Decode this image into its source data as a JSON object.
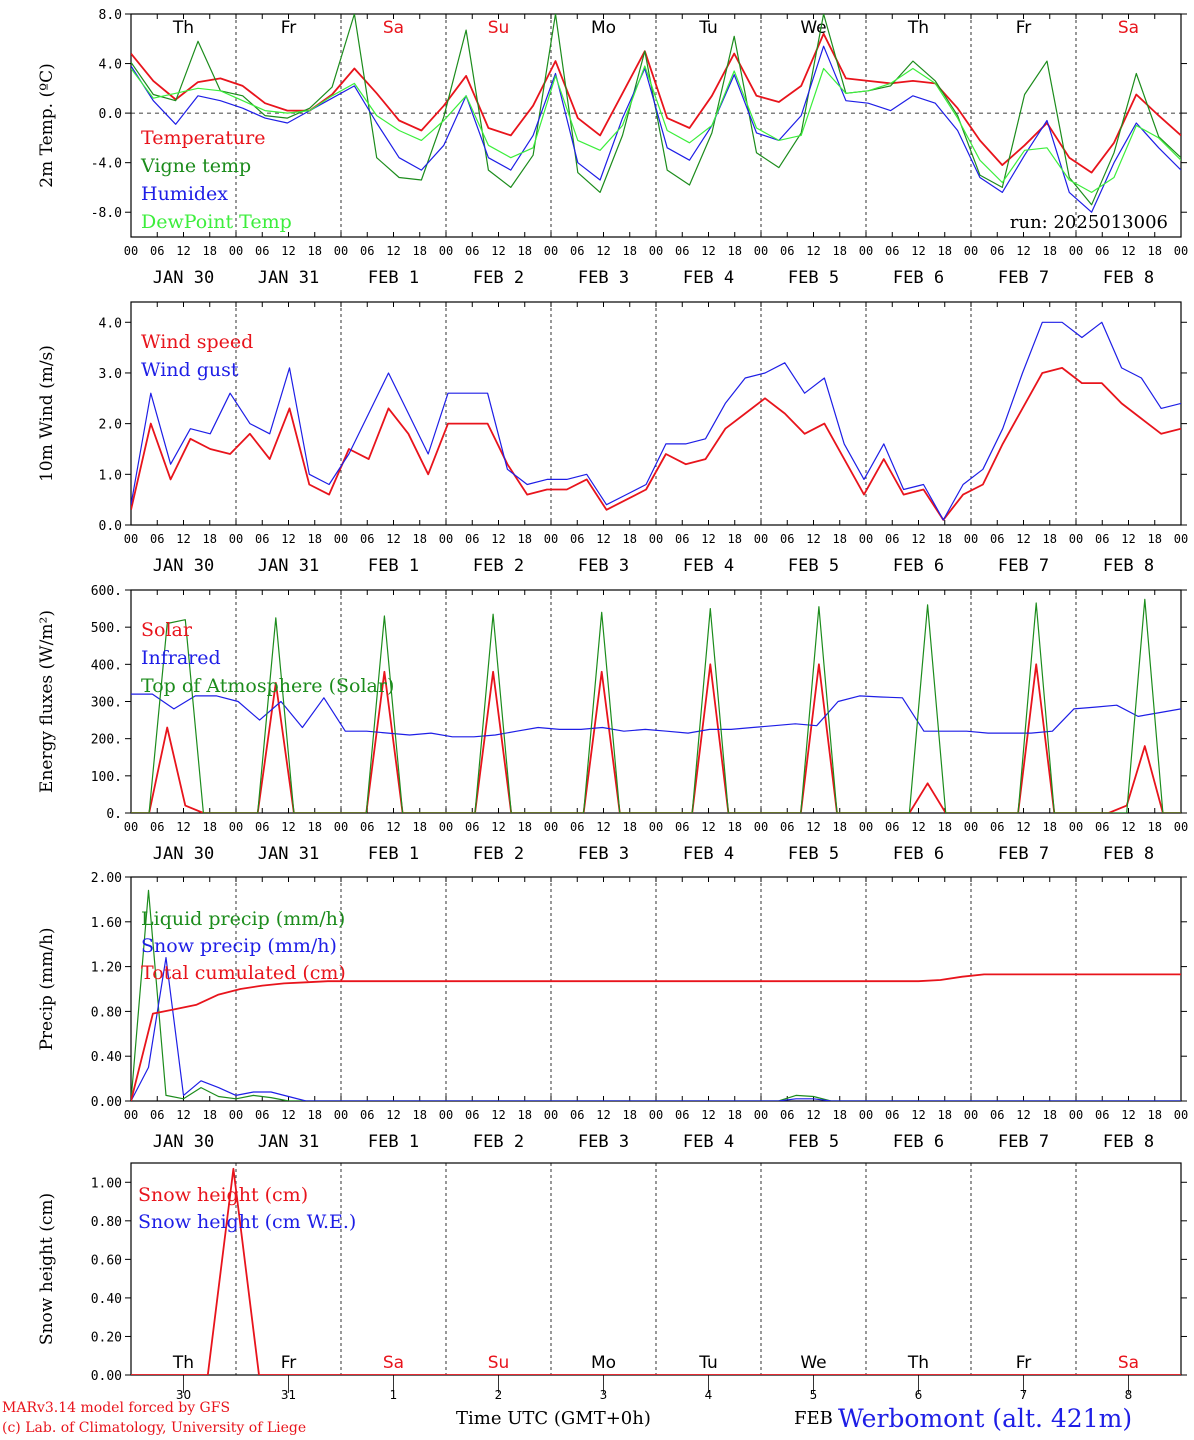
{
  "station": "Werbomont (alt. 421m)",
  "credits": [
    "MARv3.14 model forced by GFS",
    "(c) Lab. of Climatology, University of Liege"
  ],
  "xaxis_title": "Time UTC (GMT+0h)",
  "month_label": "FEB",
  "run_label": "run: 2025013006",
  "days_of_week": [
    "Th",
    "Fr",
    "Sa",
    "Su",
    "Mo",
    "Tu",
    "We",
    "Th",
    "Fr",
    "Sa"
  ],
  "weekend_days": [
    "Sa",
    "Su"
  ],
  "date_labels": [
    "JAN 30",
    "JAN 31",
    "FEB  1",
    "FEB  2",
    "FEB  3",
    "FEB  4",
    "FEB  5",
    "FEB  6",
    "FEB  7",
    "FEB  8"
  ],
  "day_numbers": [
    "30",
    "31",
    "1",
    "2",
    "3",
    "4",
    "5",
    "6",
    "7",
    "8"
  ],
  "hour_ticks": [
    "00",
    "06",
    "12",
    "18"
  ],
  "colors": {
    "red": "#e8141c",
    "green": "#1c8c1c",
    "blue": "#1e1ee6",
    "lightgreen": "#3cee3c"
  },
  "chart_data": [
    {
      "type": "line",
      "ylabel": "2m Temp. (ºC)",
      "ylim": [
        -10,
        8
      ],
      "yticks": [
        "8.0",
        "4.0",
        "0.0",
        "-4.0",
        "-8.0"
      ],
      "x_step_hours": 6,
      "zero_line": true,
      "series": [
        {
          "name": "Temperature",
          "color": "red",
          "values": [
            4.8,
            2.6,
            1.1,
            2.5,
            2.8,
            2.2,
            0.8,
            0.2,
            0.2,
            1.5,
            3.6,
            1.6,
            -0.6,
            -1.4,
            0.6,
            3.0,
            -1.2,
            -1.8,
            0.6,
            4.2,
            -0.4,
            -1.8,
            1.6,
            5.0,
            -0.4,
            -1.2,
            1.4,
            4.8,
            1.4,
            0.9,
            2.2,
            6.4,
            2.8,
            2.6,
            2.4,
            2.6,
            2.4,
            0.4,
            -2.2,
            -4.2,
            -2.6,
            -0.8,
            -3.6,
            -4.8,
            -2.4,
            1.5,
            -0.2,
            -1.8
          ]
        },
        {
          "name": "Vigne temp",
          "color": "green",
          "values": [
            4.1,
            1.5,
            1.0,
            5.8,
            1.8,
            1.4,
            -0.2,
            -0.4,
            0.4,
            2.1,
            8.0,
            -3.6,
            -5.2,
            -5.4,
            -0.3,
            6.7,
            -4.6,
            -6.0,
            -3.4,
            8.0,
            -4.8,
            -6.4,
            -1.8,
            5.0,
            -4.6,
            -5.8,
            -1.6,
            6.2,
            -3.2,
            -4.4,
            -1.6,
            8.0,
            1.6,
            1.8,
            2.2,
            4.2,
            2.6,
            -0.2,
            -5.0,
            -6.0,
            1.5,
            4.2,
            -5.2,
            -7.4,
            -3.2,
            3.2,
            -1.9,
            -3.6
          ]
        },
        {
          "name": "Humidex",
          "color": "blue",
          "values": [
            3.8,
            1.0,
            -0.9,
            1.4,
            1.0,
            0.4,
            -0.4,
            -0.8,
            0.2,
            1.2,
            2.2,
            -0.8,
            -3.6,
            -4.6,
            -2.6,
            1.4,
            -3.6,
            -4.6,
            -1.8,
            3.2,
            -4.0,
            -5.4,
            -0.4,
            3.6,
            -2.8,
            -3.8,
            -1.0,
            3.1,
            -1.6,
            -2.2,
            -0.2,
            5.4,
            1.0,
            0.8,
            0.2,
            1.4,
            0.8,
            -1.4,
            -5.2,
            -6.4,
            -3.4,
            -0.6,
            -6.4,
            -8.0,
            -4.0,
            -0.8,
            -2.8,
            -4.6
          ]
        },
        {
          "name": "DewPoint Temp",
          "color": "lightgreen",
          "values": [
            3.6,
            1.2,
            1.6,
            2.0,
            1.8,
            1.0,
            0.2,
            0.0,
            0.2,
            1.4,
            2.4,
            -0.2,
            -1.4,
            -2.2,
            -0.6,
            1.4,
            -2.6,
            -3.6,
            -2.8,
            3.0,
            -2.2,
            -3.0,
            -1.0,
            3.8,
            -1.4,
            -2.4,
            -1.0,
            3.4,
            -1.2,
            -2.2,
            -1.8,
            3.6,
            1.6,
            1.8,
            2.4,
            3.6,
            2.4,
            -0.4,
            -3.8,
            -5.6,
            -3.0,
            -2.8,
            -5.4,
            -6.4,
            -5.2,
            -1.0,
            -2.0,
            -3.8
          ]
        }
      ]
    },
    {
      "type": "line",
      "ylabel": "10m Wind (m/s)",
      "ylim": [
        0,
        4.4
      ],
      "yticks": [
        "4.0",
        "3.0",
        "2.0",
        "1.0",
        "0.0"
      ],
      "x_step_hours": 6,
      "series": [
        {
          "name": "Wind speed",
          "color": "red",
          "values": [
            0.3,
            2.0,
            0.9,
            1.7,
            1.5,
            1.4,
            1.8,
            1.3,
            2.3,
            0.8,
            0.6,
            1.5,
            1.3,
            2.3,
            1.8,
            1.0,
            2.0,
            2.0,
            2.0,
            1.2,
            0.6,
            0.7,
            0.7,
            0.9,
            0.3,
            0.5,
            0.7,
            1.4,
            1.2,
            1.3,
            1.9,
            2.2,
            2.5,
            2.2,
            1.8,
            2.0,
            1.3,
            0.6,
            1.3,
            0.6,
            0.7,
            0.1,
            0.6,
            0.8,
            1.6,
            2.3,
            3.0,
            3.1,
            2.8,
            2.8,
            2.4,
            2.1,
            1.8,
            1.9
          ]
        },
        {
          "name": "Wind gust",
          "color": "blue",
          "values": [
            0.4,
            2.6,
            1.2,
            1.9,
            1.8,
            2.6,
            2.0,
            1.8,
            3.1,
            1.0,
            0.8,
            1.4,
            2.2,
            3.0,
            2.2,
            1.4,
            2.6,
            2.6,
            2.6,
            1.1,
            0.8,
            0.9,
            0.9,
            1.0,
            0.4,
            0.6,
            0.8,
            1.6,
            1.6,
            1.7,
            2.4,
            2.9,
            3.0,
            3.2,
            2.6,
            2.9,
            1.6,
            0.9,
            1.6,
            0.7,
            0.8,
            0.1,
            0.8,
            1.1,
            1.9,
            3.0,
            4.0,
            4.0,
            3.7,
            4.0,
            3.1,
            2.9,
            2.3,
            2.4
          ]
        }
      ]
    },
    {
      "type": "line",
      "ylabel": "Energy fluxes (W/m²)",
      "ylim": [
        0,
        600
      ],
      "yticks": [
        "600.",
        "500.",
        "400.",
        "300.",
        "200.",
        "100.",
        "0."
      ],
      "x_step_hours": 6,
      "series": [
        {
          "name": "Solar",
          "color": "red",
          "values": [
            0,
            0,
            230,
            20,
            0,
            0,
            0,
            0,
            350,
            0,
            0,
            0,
            0,
            0,
            380,
            0,
            0,
            0,
            0,
            0,
            380,
            0,
            0,
            0,
            0,
            0,
            380,
            0,
            0,
            0,
            0,
            0,
            400,
            0,
            0,
            0,
            0,
            0,
            400,
            0,
            0,
            0,
            0,
            0,
            80,
            0,
            0,
            0,
            0,
            0,
            400,
            0,
            0,
            0,
            0,
            20,
            180,
            0,
            0
          ]
        },
        {
          "name": "Infrared",
          "color": "blue",
          "values": [
            320,
            320,
            280,
            315,
            315,
            300,
            250,
            300,
            230,
            310,
            220,
            220,
            215,
            210,
            215,
            205,
            205,
            210,
            220,
            230,
            225,
            225,
            230,
            220,
            225,
            220,
            215,
            225,
            225,
            230,
            235,
            240,
            235,
            300,
            315,
            312,
            310,
            220,
            220,
            220,
            215,
            215,
            215,
            220,
            280,
            285,
            290,
            260,
            270,
            280
          ]
        },
        {
          "name": "Top of Atmosphere (Solar)",
          "color": "green",
          "values": [
            0,
            0,
            510,
            520,
            0,
            0,
            0,
            0,
            525,
            0,
            0,
            0,
            0,
            0,
            530,
            0,
            0,
            0,
            0,
            0,
            535,
            0,
            0,
            0,
            0,
            0,
            540,
            0,
            0,
            0,
            0,
            0,
            550,
            0,
            0,
            0,
            0,
            0,
            555,
            0,
            0,
            0,
            0,
            0,
            560,
            0,
            0,
            0,
            0,
            0,
            565,
            0,
            0,
            0,
            0,
            0,
            575,
            0,
            0
          ]
        }
      ]
    },
    {
      "type": "line",
      "ylabel": "Precip (mm/h)",
      "ylim": [
        0,
        2.0
      ],
      "yticks": [
        "2.00",
        "1.60",
        "1.20",
        "0.80",
        "0.40",
        "0.00"
      ],
      "x_step_hours": 6,
      "series": [
        {
          "name": "Liquid precip (mm/h)",
          "color": "green",
          "values": [
            0,
            1.88,
            0.05,
            0.02,
            0.12,
            0.04,
            0.02,
            0.05,
            0.03,
            0,
            0,
            0,
            0,
            0,
            0,
            0,
            0,
            0,
            0,
            0,
            0,
            0,
            0,
            0,
            0,
            0,
            0,
            0,
            0,
            0,
            0,
            0,
            0,
            0,
            0,
            0,
            0,
            0,
            0.05,
            0.04,
            0,
            0,
            0,
            0,
            0,
            0,
            0,
            0,
            0,
            0,
            0,
            0,
            0,
            0,
            0,
            0,
            0,
            0,
            0,
            0,
            0
          ]
        },
        {
          "name": "Snow precip (mm/h)",
          "color": "blue",
          "values": [
            0,
            0.3,
            1.28,
            0.05,
            0.18,
            0.12,
            0.05,
            0.08,
            0.08,
            0.04,
            0,
            0,
            0,
            0,
            0,
            0,
            0,
            0,
            0,
            0,
            0,
            0,
            0,
            0,
            0,
            0,
            0,
            0,
            0,
            0,
            0,
            0,
            0,
            0,
            0,
            0,
            0,
            0,
            0.02,
            0.02,
            0,
            0,
            0,
            0,
            0,
            0,
            0,
            0,
            0,
            0,
            0,
            0,
            0,
            0,
            0,
            0,
            0,
            0,
            0,
            0,
            0
          ]
        },
        {
          "name": "Total cumulated (cm)",
          "color": "red",
          "values": [
            0,
            0.78,
            0.82,
            0.86,
            0.95,
            1.0,
            1.03,
            1.05,
            1.06,
            1.07,
            1.07,
            1.07,
            1.07,
            1.07,
            1.07,
            1.07,
            1.07,
            1.07,
            1.07,
            1.07,
            1.07,
            1.07,
            1.07,
            1.07,
            1.07,
            1.07,
            1.07,
            1.07,
            1.07,
            1.07,
            1.07,
            1.07,
            1.07,
            1.07,
            1.07,
            1.07,
            1.07,
            1.08,
            1.11,
            1.13,
            1.13,
            1.13,
            1.13,
            1.13,
            1.13,
            1.13,
            1.13,
            1.13,
            1.13
          ]
        }
      ]
    },
    {
      "type": "line",
      "ylabel": "Snow height (cm)",
      "ylim": [
        0,
        1.1
      ],
      "yticks": [
        "1.00",
        "0.80",
        "0.60",
        "0.40",
        "0.20",
        "0.00"
      ],
      "x_step_hours": 6,
      "series": [
        {
          "name": "Snow height (cm)",
          "color": "red",
          "values": [
            0,
            0,
            0,
            0,
            1.07,
            0,
            0,
            0,
            0,
            0,
            0,
            0,
            0,
            0,
            0,
            0,
            0,
            0,
            0,
            0,
            0,
            0,
            0,
            0,
            0,
            0,
            0,
            0,
            0,
            0,
            0,
            0,
            0,
            0,
            0,
            0,
            0,
            0,
            0,
            0,
            0,
            0
          ]
        },
        {
          "name": "Snow height (cm W.E.)",
          "color": "blue",
          "values": []
        }
      ]
    }
  ]
}
